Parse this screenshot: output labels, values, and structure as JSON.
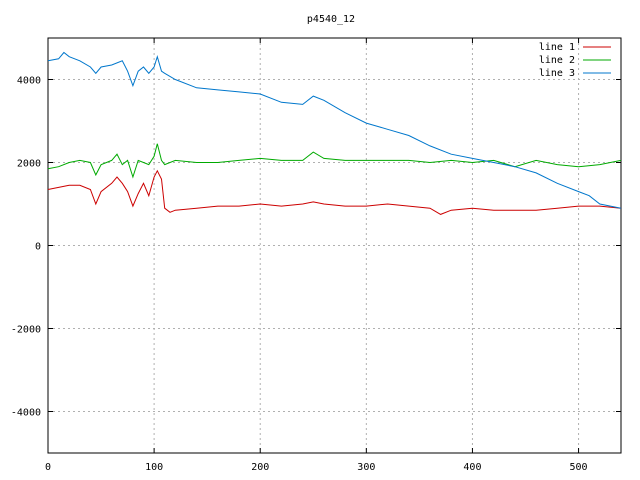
{
  "chart_data": {
    "type": "line",
    "title": "p4540_12",
    "xlabel": "",
    "ylabel": "",
    "xlim": [
      0,
      540
    ],
    "ylim": [
      -5000,
      5000
    ],
    "xticks": [
      0,
      100,
      200,
      300,
      400,
      500
    ],
    "yticks": [
      -4000,
      -2000,
      0,
      2000,
      4000
    ],
    "grid": true,
    "legend_position": "top-right",
    "series": [
      {
        "name": "line 1",
        "color": "#cc0000",
        "x": [
          0,
          10,
          20,
          30,
          40,
          45,
          50,
          60,
          65,
          70,
          75,
          80,
          85,
          90,
          95,
          100,
          103,
          107,
          110,
          115,
          120,
          140,
          160,
          180,
          200,
          220,
          240,
          250,
          260,
          280,
          300,
          320,
          340,
          360,
          370,
          380,
          400,
          420,
          440,
          460,
          480,
          500,
          520,
          540
        ],
        "y": [
          1350,
          1400,
          1450,
          1450,
          1350,
          1000,
          1300,
          1500,
          1650,
          1500,
          1300,
          950,
          1250,
          1500,
          1200,
          1650,
          1800,
          1600,
          900,
          800,
          850,
          900,
          950,
          950,
          1000,
          950,
          1000,
          1050,
          1000,
          950,
          950,
          1000,
          950,
          900,
          750,
          850,
          900,
          850,
          850,
          850,
          900,
          950,
          950,
          900
        ]
      },
      {
        "name": "line 2",
        "color": "#00aa00",
        "x": [
          0,
          10,
          20,
          30,
          40,
          45,
          50,
          60,
          65,
          70,
          75,
          80,
          85,
          90,
          95,
          100,
          103,
          107,
          110,
          120,
          140,
          160,
          180,
          200,
          220,
          240,
          250,
          260,
          280,
          300,
          320,
          340,
          360,
          380,
          400,
          420,
          440,
          460,
          480,
          500,
          520,
          540
        ],
        "y": [
          1850,
          1900,
          2000,
          2050,
          2000,
          1700,
          1950,
          2050,
          2200,
          1950,
          2050,
          1650,
          2050,
          2000,
          1950,
          2150,
          2450,
          2050,
          1950,
          2050,
          2000,
          2000,
          2050,
          2100,
          2050,
          2050,
          2250,
          2100,
          2050,
          2050,
          2050,
          2050,
          2000,
          2050,
          2000,
          2050,
          1900,
          2050,
          1950,
          1900,
          1950,
          2050
        ]
      },
      {
        "name": "line 3",
        "color": "#0077cc",
        "x": [
          0,
          10,
          15,
          20,
          30,
          40,
          45,
          50,
          60,
          70,
          75,
          80,
          85,
          90,
          95,
          100,
          103,
          107,
          110,
          120,
          140,
          160,
          180,
          200,
          220,
          240,
          250,
          260,
          280,
          300,
          320,
          340,
          360,
          380,
          400,
          420,
          440,
          460,
          480,
          500,
          510,
          520,
          530,
          540
        ],
        "y": [
          4450,
          4500,
          4650,
          4550,
          4450,
          4300,
          4150,
          4300,
          4350,
          4450,
          4200,
          3850,
          4200,
          4300,
          4150,
          4300,
          4550,
          4200,
          4150,
          4000,
          3800,
          3750,
          3700,
          3650,
          3450,
          3400,
          3600,
          3500,
          3200,
          2950,
          2800,
          2650,
          2400,
          2200,
          2100,
          2000,
          1900,
          1750,
          1500,
          1300,
          1200,
          1000,
          950,
          900
        ]
      }
    ]
  }
}
